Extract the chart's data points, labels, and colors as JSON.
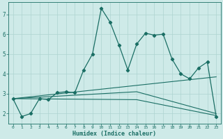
{
  "xlabel": "Humidex (Indice chaleur)",
  "bg_color": "#ceeae8",
  "grid_color": "#aed4d0",
  "line_color": "#1a6e64",
  "xlim": [
    -0.5,
    23.5
  ],
  "ylim": [
    1.5,
    7.6
  ],
  "xticks": [
    0,
    1,
    2,
    3,
    4,
    5,
    6,
    7,
    8,
    9,
    10,
    11,
    12,
    13,
    14,
    15,
    16,
    17,
    18,
    19,
    20,
    21,
    22,
    23
  ],
  "yticks": [
    2,
    3,
    4,
    5,
    6,
    7
  ],
  "main_x": [
    0,
    1,
    2,
    3,
    4,
    5,
    6,
    7,
    8,
    9,
    10,
    11,
    12,
    13,
    14,
    15,
    16,
    17,
    18,
    19,
    20,
    21,
    22,
    23
  ],
  "main_y": [
    2.75,
    1.85,
    2.0,
    2.75,
    2.7,
    3.05,
    3.1,
    3.05,
    4.2,
    5.0,
    7.3,
    6.6,
    5.45,
    4.2,
    5.5,
    6.05,
    5.95,
    6.0,
    4.75,
    4.0,
    3.75,
    4.3,
    4.6,
    1.85
  ],
  "trend1_x": [
    0,
    23
  ],
  "trend1_y": [
    2.75,
    3.85
  ],
  "trend2_x": [
    0,
    14,
    23
  ],
  "trend2_y": [
    2.75,
    3.1,
    2.0
  ],
  "trend3_x": [
    0,
    14,
    23
  ],
  "trend3_y": [
    2.75,
    2.7,
    1.9
  ]
}
